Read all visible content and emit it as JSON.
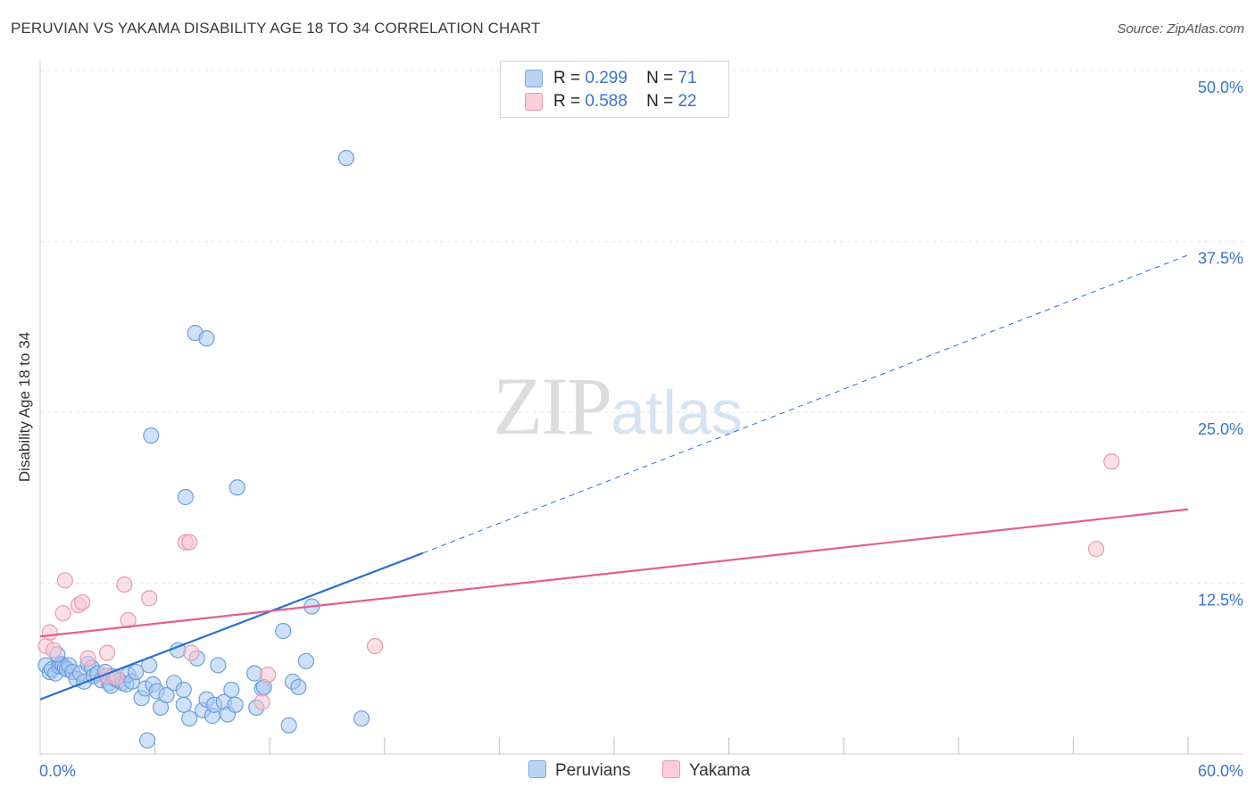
{
  "header": {
    "title": "PERUVIAN VS YAKAMA DISABILITY AGE 18 TO 34 CORRELATION CHART",
    "source": "Source: ZipAtlas.com"
  },
  "legend": {
    "rows": [
      {
        "r_label": "R =",
        "r_value": "0.299",
        "n_label": "N =",
        "n_value": "71"
      },
      {
        "r_label": "R =",
        "r_value": "0.588",
        "n_label": "N =",
        "n_value": "22"
      }
    ],
    "bottom": [
      "Peruvians",
      "Yakama"
    ]
  },
  "watermark": {
    "zip": "ZIP",
    "atlas": "atlas"
  },
  "colors": {
    "blue_fill": "#a8c8f0",
    "blue_stroke": "#6f9fdc",
    "blue_line": "#2970d0",
    "pink_fill": "#f8c4d2",
    "pink_stroke": "#e89ab0",
    "pink_line": "#e0608c",
    "tick_label": "#3a74c8"
  },
  "chart_data": {
    "type": "scatter",
    "title": "PERUVIAN VS YAKAMA DISABILITY AGE 18 TO 34 CORRELATION CHART",
    "xlabel": "",
    "ylabel": "Disability Age 18 to 34",
    "xlim": [
      0,
      60
    ],
    "ylim": [
      0,
      50
    ],
    "x_tick_labels": [
      "0.0%",
      "60.0%"
    ],
    "y_ticks": [
      12.5,
      25.0,
      37.5,
      50.0
    ],
    "y_tick_labels": [
      "12.5%",
      "25.0%",
      "37.5%",
      "50.0%"
    ],
    "grid": true,
    "series": [
      {
        "name": "Peruvians",
        "r": 0.299,
        "n": 71,
        "trend": {
          "x0": 0,
          "y0": 4.0,
          "x1": 20,
          "y1": 14.7,
          "dashed_to_x": 60,
          "dashed_to_y": 36.5
        },
        "points": [
          [
            0.3,
            6.5
          ],
          [
            0.5,
            6.0
          ],
          [
            0.6,
            6.2
          ],
          [
            0.8,
            5.9
          ],
          [
            1.0,
            6.4
          ],
          [
            1.1,
            6.6
          ],
          [
            1.2,
            6.5
          ],
          [
            1.3,
            6.3
          ],
          [
            1.4,
            6.2
          ],
          [
            1.5,
            6.5
          ],
          [
            1.7,
            6.0
          ],
          [
            1.9,
            5.5
          ],
          [
            2.1,
            5.9
          ],
          [
            2.3,
            5.3
          ],
          [
            2.5,
            6.6
          ],
          [
            2.7,
            6.3
          ],
          [
            2.8,
            5.7
          ],
          [
            3.0,
            5.9
          ],
          [
            3.2,
            5.4
          ],
          [
            3.4,
            6.0
          ],
          [
            3.6,
            5.2
          ],
          [
            3.7,
            5.0
          ],
          [
            3.8,
            5.7
          ],
          [
            3.9,
            5.5
          ],
          [
            4.1,
            5.4
          ],
          [
            4.3,
            5.2
          ],
          [
            4.5,
            5.1
          ],
          [
            4.6,
            5.8
          ],
          [
            4.8,
            5.3
          ],
          [
            5.0,
            6.0
          ],
          [
            5.3,
            4.1
          ],
          [
            5.5,
            4.8
          ],
          [
            5.7,
            6.5
          ],
          [
            5.9,
            5.1
          ],
          [
            6.1,
            4.6
          ],
          [
            6.3,
            3.4
          ],
          [
            6.6,
            4.3
          ],
          [
            7.0,
            5.2
          ],
          [
            7.2,
            7.6
          ],
          [
            7.5,
            4.7
          ],
          [
            7.5,
            3.6
          ],
          [
            7.8,
            2.6
          ],
          [
            8.2,
            7.0
          ],
          [
            8.5,
            3.2
          ],
          [
            8.7,
            4.0
          ],
          [
            9.0,
            2.8
          ],
          [
            9.1,
            3.6
          ],
          [
            9.3,
            6.5
          ],
          [
            9.6,
            3.8
          ],
          [
            9.8,
            2.9
          ],
          [
            10.0,
            4.7
          ],
          [
            10.2,
            3.6
          ],
          [
            11.2,
            5.9
          ],
          [
            11.3,
            3.4
          ],
          [
            11.6,
            4.8
          ],
          [
            11.7,
            4.9
          ],
          [
            12.7,
            9.0
          ],
          [
            13.0,
            2.1
          ],
          [
            13.2,
            5.3
          ],
          [
            13.5,
            4.9
          ],
          [
            13.9,
            6.8
          ],
          [
            14.2,
            10.8
          ],
          [
            5.8,
            23.3
          ],
          [
            8.1,
            30.8
          ],
          [
            8.7,
            30.4
          ],
          [
            7.6,
            18.8
          ],
          [
            10.3,
            19.5
          ],
          [
            16.0,
            43.6
          ],
          [
            16.8,
            2.6
          ],
          [
            5.6,
            1.0
          ],
          [
            0.9,
            7.3
          ]
        ]
      },
      {
        "name": "Yakama",
        "r": 0.588,
        "n": 22,
        "trend": {
          "x0": 0,
          "y0": 8.6,
          "x1": 60,
          "y1": 17.9
        },
        "points": [
          [
            0.3,
            7.9
          ],
          [
            0.7,
            7.6
          ],
          [
            0.5,
            8.9
          ],
          [
            1.2,
            10.3
          ],
          [
            1.3,
            12.7
          ],
          [
            2.0,
            10.9
          ],
          [
            2.2,
            11.1
          ],
          [
            2.5,
            7.0
          ],
          [
            3.5,
            7.4
          ],
          [
            3.5,
            5.7
          ],
          [
            4.4,
            12.4
          ],
          [
            4.6,
            9.8
          ],
          [
            5.7,
            11.4
          ],
          [
            7.6,
            15.5
          ],
          [
            7.8,
            15.5
          ],
          [
            7.9,
            7.4
          ],
          [
            11.6,
            3.8
          ],
          [
            11.9,
            5.8
          ],
          [
            17.5,
            7.9
          ],
          [
            56.0,
            21.4
          ],
          [
            55.2,
            15.0
          ],
          [
            4.0,
            5.6
          ]
        ]
      }
    ]
  }
}
